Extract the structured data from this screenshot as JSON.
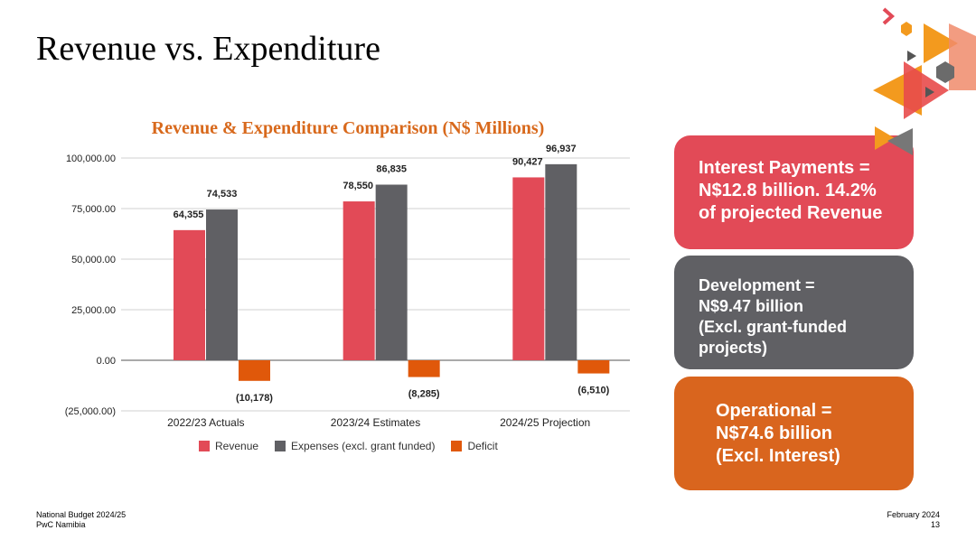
{
  "slide": {
    "title": "Revenue vs. Expenditure"
  },
  "chart_data": {
    "type": "bar",
    "title": "Revenue & Expenditure Comparison (N$ Millions)",
    "categories": [
      "2022/23 Actuals",
      "2023/24 Estimates",
      "2024/25 Projection"
    ],
    "series": [
      {
        "name": "Revenue",
        "color": "#e24a57",
        "values": [
          64355,
          78550,
          90427
        ],
        "labels": [
          "64,355",
          "78,550",
          "90,427"
        ]
      },
      {
        "name": "Expenses (excl. grant funded)",
        "color": "#606064",
        "values": [
          74533,
          86835,
          96937
        ],
        "labels": [
          "74,533",
          "86,835",
          "96,937"
        ]
      },
      {
        "name": "Deficit",
        "color": "#e0580a",
        "values": [
          -10178,
          -8285,
          -6510
        ],
        "labels": [
          "(10,178)",
          "(8,285)",
          "(6,510)"
        ]
      }
    ],
    "y_ticks": [
      100000,
      75000,
      50000,
      25000,
      0,
      -25000
    ],
    "y_tick_labels": [
      "100,000.00",
      "75,000.00",
      "50,000.00",
      "25,000.00",
      "0.00",
      "(25,000.00)"
    ],
    "ylim": [
      -25000,
      100000
    ],
    "grid": true,
    "legend": "bottom"
  },
  "boxes": {
    "interest": {
      "lines": [
        "Interest Payments =",
        "N$12.8 billion. 14.2%",
        "of projected Revenue"
      ],
      "color": "#e24a57"
    },
    "development": {
      "lines": [
        "Development =",
        "N$9.47 billion",
        "(Excl. grant-funded",
        "projects)"
      ],
      "color": "#606064"
    },
    "operational": {
      "lines": [
        "Operational =",
        "N$74.6 billion",
        "(Excl. Interest)"
      ],
      "color": "#d9651e"
    }
  },
  "footer": {
    "left_line1": "National Budget 2024/25",
    "left_line2": "PwC Namibia",
    "right_line1": "February 2024",
    "right_line2": "13"
  }
}
